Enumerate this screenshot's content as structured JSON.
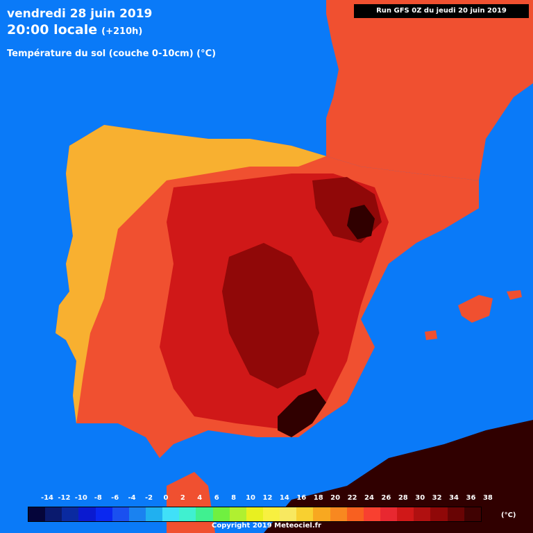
{
  "header": {
    "date": "vendredi 28 juin 2019",
    "time": "20:00 locale",
    "lead": "(+210h)",
    "parameter": "Température du sol (couche 0-10cm) (°C)",
    "run": "Run GFS 0Z du jeudi 20 juin 2019"
  },
  "legend": {
    "labels": [
      "-14",
      "-12",
      "-10",
      "-8",
      "-6",
      "-4",
      "-2",
      "0",
      "2",
      "4",
      "6",
      "8",
      "10",
      "12",
      "14",
      "16",
      "18",
      "20",
      "22",
      "24",
      "26",
      "28",
      "30",
      "32",
      "34",
      "36",
      "38"
    ],
    "colors": [
      "#05053a",
      "#0a1a6e",
      "#0a2aa0",
      "#0a1ad0",
      "#0a28f0",
      "#1a50f0",
      "#1a82f0",
      "#20b0f0",
      "#40e0f8",
      "#40f0d0",
      "#40f090",
      "#70f040",
      "#b0f030",
      "#e8f020",
      "#f8f040",
      "#f8e860",
      "#f8d030",
      "#f8a820",
      "#f88820",
      "#f86020",
      "#f84030",
      "#e82830",
      "#d01818",
      "#b01010",
      "#900808",
      "#680404",
      "#400202"
    ],
    "unit": "(°C)"
  },
  "copyright": "Copyright 2019 Meteociel.fr",
  "map": {
    "sea_color": "#0a7af8",
    "land_colors": {
      "cool": "#f8b030",
      "mild": "#f89028",
      "warm": "#f05030",
      "hot": "#d01818",
      "very_hot": "#900808",
      "extreme": "#300000"
    }
  }
}
